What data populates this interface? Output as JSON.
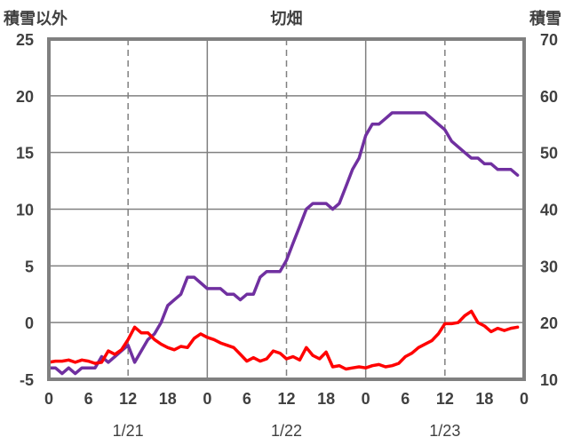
{
  "chart_data": {
    "type": "line",
    "title": "切畑",
    "left_axis_label": "積雪以外",
    "right_axis_label": "積雪",
    "left_ylim": [
      -5,
      25
    ],
    "left_yticks": [
      -5,
      0,
      5,
      10,
      15,
      20,
      25
    ],
    "right_ylim": [
      10,
      70
    ],
    "right_yticks": [
      10,
      20,
      30,
      40,
      50,
      60,
      70
    ],
    "xlim": [
      0,
      72
    ],
    "x_hour_ticks": [
      0,
      6,
      12,
      18,
      0,
      6,
      12,
      18,
      0,
      6,
      12,
      18,
      0
    ],
    "dates": [
      "1/21",
      "1/22",
      "1/23"
    ],
    "grid": {
      "solid_x": [
        24,
        48
      ],
      "dashed_x": [
        12,
        36,
        60
      ],
      "y": "solid"
    },
    "series": [
      {
        "axis": "right",
        "color": "#7030A0",
        "x": [
          0,
          1,
          2,
          3,
          4,
          5,
          6,
          7,
          8,
          9,
          10,
          11,
          12,
          13,
          14,
          15,
          16,
          17,
          18,
          19,
          20,
          21,
          22,
          23,
          24,
          25,
          26,
          27,
          28,
          29,
          30,
          31,
          32,
          33,
          34,
          35,
          36,
          37,
          38,
          39,
          40,
          41,
          42,
          43,
          44,
          45,
          46,
          47,
          48,
          49,
          50,
          51,
          52,
          53,
          54,
          55,
          56,
          57,
          58,
          59,
          60,
          61,
          62,
          63,
          64,
          65,
          66,
          67,
          68,
          69,
          70,
          71
        ],
        "values": [
          12,
          12,
          11,
          12,
          11,
          12,
          12,
          12,
          14,
          13,
          14,
          15,
          16,
          13,
          15,
          17,
          18,
          20,
          23,
          24,
          25,
          28,
          28,
          27,
          26,
          26,
          26,
          25,
          25,
          24,
          25,
          25,
          28,
          29,
          29,
          29,
          31,
          34,
          37,
          40,
          41,
          41,
          41,
          40,
          41,
          44,
          47,
          49,
          53,
          55,
          55,
          56,
          57,
          57,
          57,
          57,
          57,
          57,
          56,
          55,
          54,
          52,
          51,
          50,
          49,
          49,
          48,
          48,
          47,
          47,
          47,
          46
        ]
      },
      {
        "axis": "left",
        "color": "#FF0000",
        "x": [
          0,
          1,
          2,
          3,
          4,
          5,
          6,
          7,
          8,
          9,
          10,
          11,
          12,
          13,
          14,
          15,
          16,
          17,
          18,
          19,
          20,
          21,
          22,
          23,
          24,
          25,
          26,
          27,
          28,
          29,
          30,
          31,
          32,
          33,
          34,
          35,
          36,
          37,
          38,
          39,
          40,
          41,
          42,
          43,
          44,
          45,
          46,
          47,
          48,
          49,
          50,
          51,
          52,
          53,
          54,
          55,
          56,
          57,
          58,
          59,
          60,
          61,
          62,
          63,
          64,
          65,
          66,
          67,
          68,
          69,
          70,
          71
        ],
        "values": [
          -3.5,
          -3.4,
          -3.4,
          -3.3,
          -3.5,
          -3.3,
          -3.4,
          -3.6,
          -3.5,
          -2.5,
          -2.8,
          -2.4,
          -1.5,
          -0.4,
          -0.9,
          -0.9,
          -1.5,
          -1.9,
          -2.2,
          -2.4,
          -2.1,
          -2.2,
          -1.4,
          -1.0,
          -1.3,
          -1.5,
          -1.8,
          -2.0,
          -2.2,
          -2.8,
          -3.4,
          -3.1,
          -3.4,
          -3.2,
          -2.5,
          -2.7,
          -3.2,
          -3.0,
          -3.3,
          -2.2,
          -2.9,
          -3.2,
          -2.6,
          -3.9,
          -3.8,
          -4.1,
          -4.0,
          -3.9,
          -4.0,
          -3.8,
          -3.7,
          -3.9,
          -3.8,
          -3.6,
          -3.0,
          -2.7,
          -2.2,
          -1.9,
          -1.6,
          -1.0,
          -0.1,
          -0.1,
          0.0,
          0.6,
          1.0,
          0.0,
          -0.3,
          -0.8,
          -0.5,
          -0.7,
          -0.5,
          -0.4
        ]
      }
    ]
  }
}
